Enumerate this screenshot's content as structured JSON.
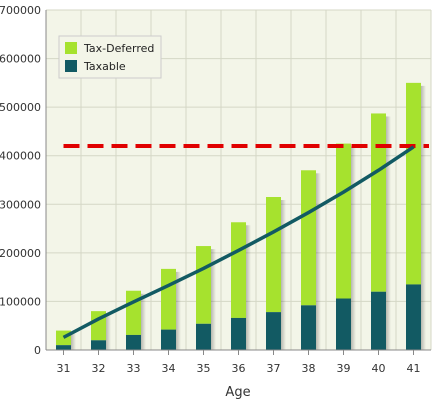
{
  "chart_data": {
    "type": "bar",
    "stacked": true,
    "categories": [
      "31",
      "32",
      "33",
      "34",
      "35",
      "36",
      "37",
      "38",
      "39",
      "40",
      "41"
    ],
    "series": [
      {
        "name": "Taxable",
        "color": "#125a63",
        "values": [
          10000,
          20000,
          31000,
          42000,
          54000,
          66000,
          78000,
          92000,
          106000,
          120000,
          135000
        ]
      },
      {
        "name": "Tax-Deferred",
        "color": "#a6e22e",
        "values": [
          30000,
          60000,
          91000,
          125000,
          160000,
          197000,
          237000,
          278000,
          319000,
          367000,
          415000
        ]
      }
    ],
    "line": {
      "color": "#125a63",
      "values": [
        26000,
        64000,
        99000,
        133000,
        168000,
        205000,
        243000,
        283000,
        325000,
        370000,
        418000
      ]
    },
    "reference_line": {
      "value": 420000,
      "color": "#e00000",
      "style": "dashed"
    },
    "xlabel": "Age",
    "ylabel": "",
    "ylim": [
      0,
      700000
    ],
    "yticks": [
      "0",
      "100000",
      "200000",
      "300000",
      "400000",
      "500000",
      "600000",
      "700000"
    ],
    "grid": true,
    "legend_position": "top-left",
    "plot_background": "#f3f5e8"
  }
}
